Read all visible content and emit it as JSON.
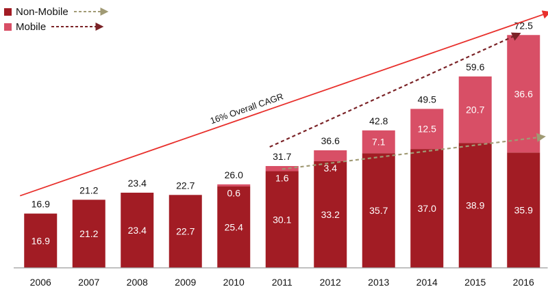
{
  "chart_data": {
    "type": "bar",
    "stacked": true,
    "title": "",
    "xlabel": "",
    "ylabel": "",
    "categories": [
      "2006",
      "2007",
      "2008",
      "2009",
      "2010",
      "2011",
      "2012",
      "2013",
      "2014",
      "2015",
      "2016"
    ],
    "series": [
      {
        "name": "Non-Mobile",
        "values": [
          16.9,
          21.2,
          23.4,
          22.7,
          25.4,
          30.1,
          33.2,
          35.7,
          37.0,
          38.9,
          35.9
        ],
        "labels": [
          "16.9",
          "21.2",
          "23.4",
          "22.7",
          "25.4",
          "30.1",
          "33.2",
          "35.7",
          "37.0",
          "38.9",
          "35.9"
        ]
      },
      {
        "name": "Mobile",
        "values": [
          0,
          0,
          0,
          0,
          0.6,
          1.6,
          3.4,
          7.1,
          12.5,
          20.7,
          36.6
        ],
        "labels": [
          "",
          "",
          "",
          "",
          "0.6",
          "1.6",
          "3.4",
          "7.1",
          "12.5",
          "20.7",
          "36.6"
        ]
      }
    ],
    "totals": [
      "16.9",
      "21.2",
      "23.4",
      "22.7",
      "26.0",
      "31.7",
      "36.6",
      "42.8",
      "49.5",
      "59.6",
      "72.5"
    ],
    "ylim": [
      0,
      80
    ],
    "grid": false,
    "legend_position": "top-left",
    "annotations": [
      {
        "text": "16% Overall CAGR",
        "type": "trend-arrow",
        "from_category": "2006",
        "to_category": "2016"
      },
      {
        "type": "trend-arrow",
        "series": "Mobile",
        "from_category": "2011",
        "to_category": "2016"
      },
      {
        "type": "trend-arrow",
        "series": "Non-Mobile",
        "from_category": "2011",
        "to_category": "2016"
      }
    ]
  },
  "legend": {
    "items": [
      {
        "label": "Non-Mobile",
        "swatch_color": "#a21c24",
        "arrow_color": "#a09a74"
      },
      {
        "label": "Mobile",
        "swatch_color": "#d84f66",
        "arrow_color": "#7a2226"
      }
    ]
  },
  "colors": {
    "non_mobile": "#a21c24",
    "mobile": "#d84f66",
    "cagr_arrow": "#e8302c",
    "mobile_arrow": "#7a2226",
    "non_mobile_arrow": "#a09a74",
    "axis": "#9a9a9a"
  }
}
